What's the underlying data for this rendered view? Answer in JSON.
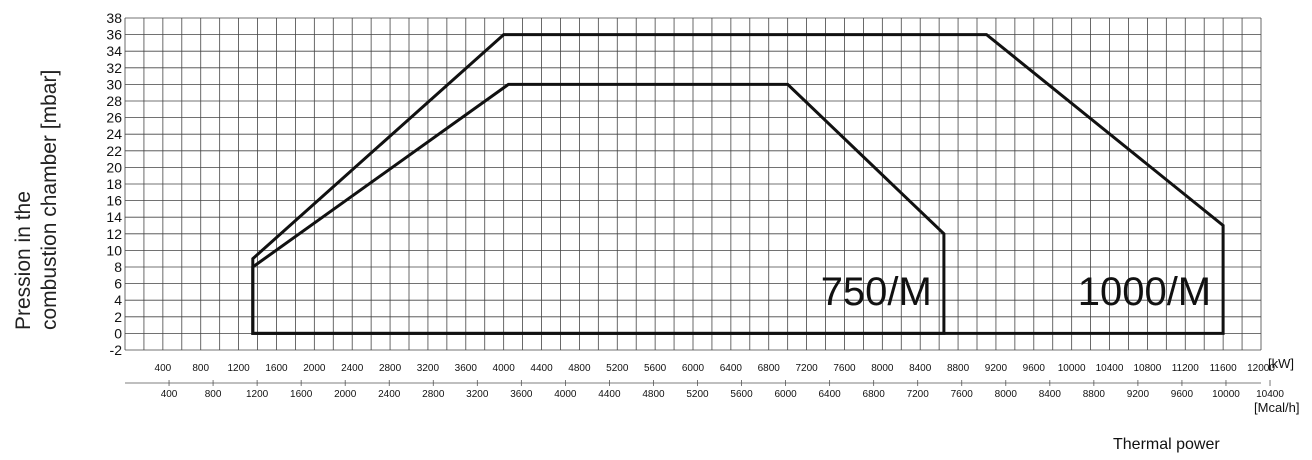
{
  "chart_data": {
    "type": "area",
    "ylabel": [
      "Pression in the",
      "combustion chamber [mbar]"
    ],
    "xlabel": "Thermal power",
    "y_range": [
      -2,
      38
    ],
    "y_ticks": [
      -2,
      0,
      2,
      4,
      6,
      8,
      10,
      12,
      14,
      16,
      18,
      20,
      22,
      24,
      26,
      28,
      30,
      32,
      34,
      36,
      38
    ],
    "x_range_kW": [
      0,
      12000
    ],
    "x_ticks_kW": [
      400,
      800,
      1200,
      1600,
      2000,
      2400,
      2800,
      3200,
      3600,
      4000,
      4400,
      4800,
      5200,
      5600,
      6000,
      6400,
      6800,
      7200,
      7600,
      8000,
      8400,
      8800,
      9200,
      9600,
      10000,
      10400,
      10800,
      11200,
      11600,
      12000
    ],
    "x_unit_kW": "[kW]",
    "x_ticks_Mcal": [
      400,
      800,
      1200,
      1600,
      2000,
      2400,
      2800,
      3200,
      3600,
      4000,
      4400,
      4800,
      5200,
      5600,
      6000,
      6400,
      6800,
      7200,
      7600,
      8000,
      8400,
      8800,
      9200,
      9600,
      10000,
      10400
    ],
    "x_unit_Mcal": "[Mcal/h]",
    "grid": true,
    "series": [
      {
        "name": "1000/M",
        "points": [
          [
            1350,
            0
          ],
          [
            1350,
            9
          ],
          [
            4000,
            36
          ],
          [
            9100,
            36
          ],
          [
            11600,
            13
          ],
          [
            11600,
            0
          ]
        ]
      },
      {
        "name": "750/M",
        "points": [
          [
            1350,
            0
          ],
          [
            1350,
            8
          ],
          [
            4050,
            30
          ],
          [
            7000,
            30
          ],
          [
            8650,
            12
          ],
          [
            8650,
            0
          ]
        ]
      }
    ]
  }
}
